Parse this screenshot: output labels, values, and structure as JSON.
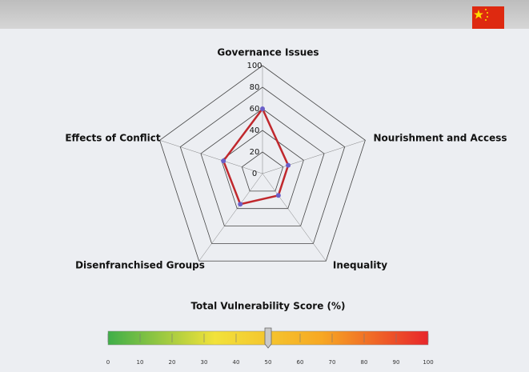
{
  "chart_data": [
    {
      "type": "radar",
      "categories": [
        "Governance Issues",
        "Nourishment and Access",
        "Inequality",
        "Disenfranchised Groups",
        "Effects of Conflict"
      ],
      "values": [
        60,
        25,
        25,
        35,
        38
      ],
      "rlim": [
        0,
        100
      ],
      "rticks": [
        0,
        20,
        40,
        60,
        80,
        100
      ],
      "color": "#c0282d",
      "marker_color": "#6a5fc8",
      "grid": true
    },
    {
      "type": "gauge",
      "title": "Total Vulnerability Score (%)",
      "value": 50,
      "xlim": [
        0,
        100
      ],
      "xticks": [
        0,
        10,
        20,
        30,
        40,
        50,
        60,
        70,
        80,
        90,
        100
      ],
      "colors": [
        "#3fae49",
        "#f2e23a",
        "#f7a823",
        "#e8262b"
      ]
    }
  ]
}
